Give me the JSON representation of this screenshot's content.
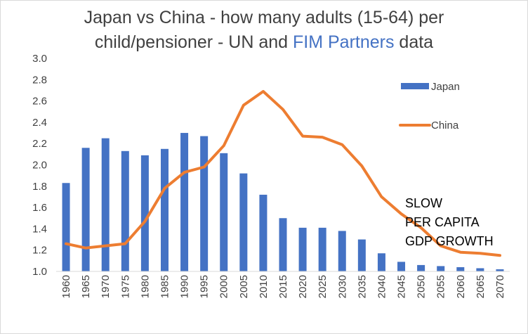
{
  "chart_data": {
    "type": "bar+line",
    "title": {
      "line1": "Japan vs China - how many adults (15-64) per",
      "line2_prefix": "child/pensioner - UN and ",
      "line2_highlight": "FIM Partners",
      "line2_suffix": " data"
    },
    "categories": [
      "1960",
      "1965",
      "1970",
      "1975",
      "1980",
      "1985",
      "1990",
      "1995",
      "2000",
      "2005",
      "2010",
      "2015",
      "2020",
      "2025",
      "2030",
      "2035",
      "2040",
      "2045",
      "2050",
      "2055",
      "2060",
      "2065",
      "2070"
    ],
    "series": [
      {
        "name": "Japan",
        "kind": "bar",
        "color": "#4472C4",
        "values": [
          1.83,
          2.16,
          2.25,
          2.13,
          2.09,
          2.15,
          2.3,
          2.27,
          2.11,
          1.92,
          1.72,
          1.5,
          1.41,
          1.41,
          1.38,
          1.3,
          1.17,
          1.09,
          1.06,
          1.05,
          1.04,
          1.03,
          1.02
        ]
      },
      {
        "name": "China",
        "kind": "line",
        "color": "#ED7D31",
        "values": [
          1.26,
          1.22,
          1.24,
          1.26,
          1.47,
          1.78,
          1.93,
          1.98,
          2.18,
          2.56,
          2.69,
          2.52,
          2.27,
          2.26,
          2.19,
          1.99,
          1.7,
          1.54,
          1.41,
          1.24,
          1.18,
          1.17,
          1.15
        ]
      }
    ],
    "y_ticks": [
      "1.0",
      "1.2",
      "1.4",
      "1.6",
      "1.8",
      "2.0",
      "2.2",
      "2.4",
      "2.6",
      "2.8",
      "3.0"
    ],
    "ylim": [
      1.0,
      3.0
    ],
    "annotation": [
      "SLOW",
      "PER CAPITA",
      "GDP GROWTH"
    ],
    "colors": {
      "title": "#404040",
      "highlight": "#4472C4",
      "axis": "#d9d9d9"
    }
  }
}
